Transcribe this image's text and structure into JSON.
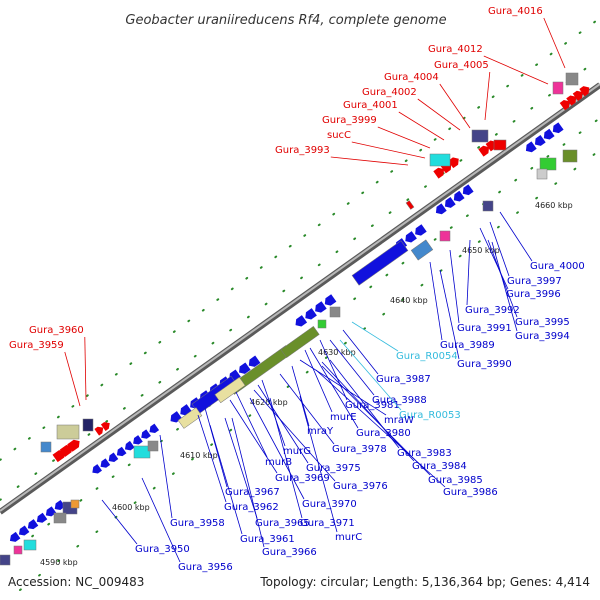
{
  "title": "Geobacter uraniireducens Rf4, complete genome",
  "accession": "Accession: NC_009483",
  "summary": "Topology: circular; Length: 5,136,364 bp; Genes: 4,414",
  "colors": {
    "forward_label": "#e00000",
    "reverse_label": "#0000cc",
    "rna_label": "#33bbdd",
    "backbone": "#8a8a8a"
  },
  "ticks": [
    "4590 kbp",
    "4600 kbp",
    "4610 kbp",
    "4620 kbp",
    "4630 kbp",
    "4640 kbp",
    "4650 kbp",
    "4660 kbp"
  ],
  "forward_labels": [
    "Gura_4016",
    "Gura_4012",
    "Gura_4005",
    "Gura_4004",
    "Gura_4002",
    "Gura_4001",
    "Gura_3999",
    "sucC",
    "Gura_3993",
    "Gura_3960",
    "Gura_3959"
  ],
  "reverse_labels": [
    "Gura_4000",
    "Gura_3997",
    "Gura_3996",
    "Gura_3992",
    "Gura_3995",
    "Gura_3991",
    "Gura_3994",
    "Gura_3989",
    "Gura_3990",
    "Gura_R0054",
    "Gura_3987",
    "Gura_3988",
    "Gura_3981",
    "Gura_R0053",
    "murE",
    "Gura_3980",
    "mraW",
    "mraY",
    "Gura_3978",
    "Gura_3983",
    "Gura_3984",
    "Gura_3985",
    "Gura_3986",
    "murG",
    "Gura_3975",
    "Gura_3976",
    "murB",
    "Gura_3969",
    "Gura_3967",
    "Gura_3962",
    "Gura_3970",
    "Gura_3958",
    "Gura_3965",
    "Gura_3971",
    "Gura_3961",
    "Gura_3966",
    "murC",
    "Gura_3950",
    "Gura_3956"
  ]
}
